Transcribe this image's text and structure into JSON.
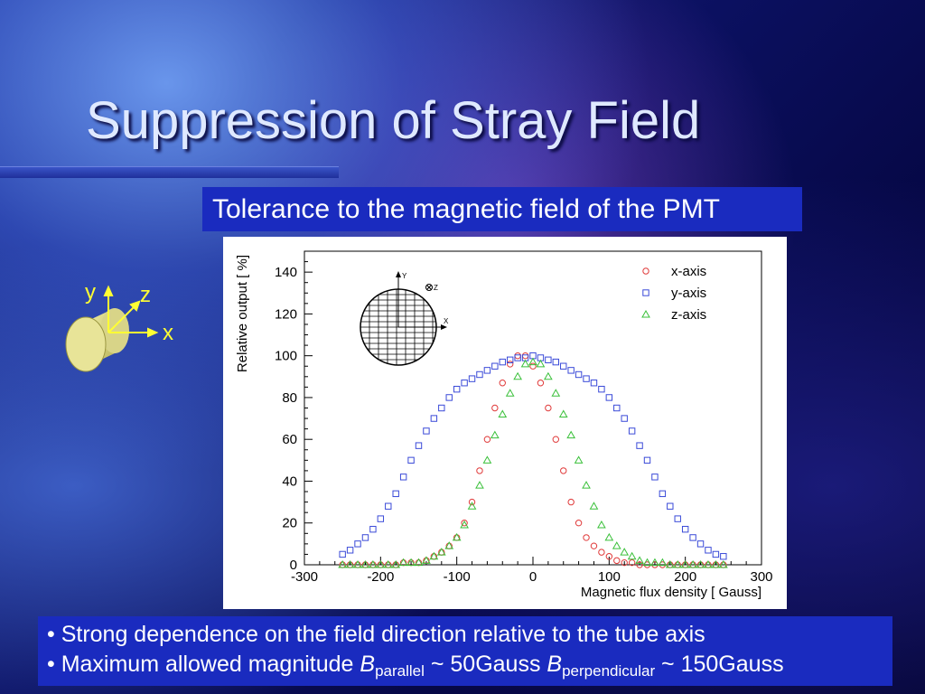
{
  "slide": {
    "title": "Suppression of Stray Field",
    "subtitle": "Tolerance to the magnetic field of the PMT",
    "axis_labels": {
      "y": "y",
      "z": "z",
      "x": "x"
    },
    "bullets": {
      "b1": "• Strong dependence on the field direction relative to the tube axis",
      "b2_prefix": "• Maximum allowed magnitude ",
      "b2_B1": "B",
      "b2_sub1": "parallel",
      "b2_mid": " ~ 50Gauss ",
      "b2_B2": "B",
      "b2_sub2": "perpendicular",
      "b2_suffix": " ~ 150Gauss"
    }
  },
  "chart_data": {
    "type": "scatter",
    "xlabel": "Magnetic flux density [ Gauss]",
    "ylabel": "Relative output [ %]",
    "xlim": [
      -300,
      300
    ],
    "ylim": [
      0,
      150
    ],
    "xticks": [
      -300,
      -200,
      -100,
      0,
      100,
      200,
      300
    ],
    "yticks": [
      0,
      20,
      40,
      60,
      80,
      100,
      120,
      140
    ],
    "legend_position": "top-right",
    "inset_labels": {
      "y": "Y",
      "z": "Z",
      "x": "X"
    },
    "series": [
      {
        "name": "x-axis",
        "marker": "circle",
        "color": "#e03a3a",
        "x": [
          -250,
          -240,
          -230,
          -220,
          -210,
          -200,
          -190,
          -180,
          -170,
          -160,
          -150,
          -140,
          -130,
          -120,
          -110,
          -100,
          -90,
          -80,
          -70,
          -60,
          -50,
          -40,
          -30,
          -20,
          -10,
          0,
          10,
          20,
          30,
          40,
          50,
          60,
          70,
          80,
          90,
          100,
          110,
          120,
          130,
          140,
          150,
          160,
          170,
          180,
          190,
          200,
          210,
          220,
          230,
          240,
          250
        ],
        "y": [
          0,
          0,
          0,
          0,
          0,
          0,
          0,
          0,
          1,
          1,
          1,
          2,
          4,
          6,
          9,
          13,
          20,
          30,
          45,
          60,
          75,
          87,
          96,
          100,
          100,
          95,
          87,
          75,
          60,
          45,
          30,
          20,
          13,
          9,
          6,
          4,
          2,
          1,
          1,
          0,
          0,
          0,
          0,
          0,
          0,
          0,
          0,
          0,
          0,
          0,
          0
        ]
      },
      {
        "name": "y-axis",
        "marker": "square",
        "color": "#3a4ad8",
        "x": [
          -250,
          -240,
          -230,
          -220,
          -210,
          -200,
          -190,
          -180,
          -170,
          -160,
          -150,
          -140,
          -130,
          -120,
          -110,
          -100,
          -90,
          -80,
          -70,
          -60,
          -50,
          -40,
          -30,
          -20,
          -10,
          0,
          10,
          20,
          30,
          40,
          50,
          60,
          70,
          80,
          90,
          100,
          110,
          120,
          130,
          140,
          150,
          160,
          170,
          180,
          190,
          200,
          210,
          220,
          230,
          240,
          250
        ],
        "y": [
          5,
          7,
          10,
          13,
          17,
          22,
          28,
          34,
          42,
          50,
          57,
          64,
          70,
          75,
          80,
          84,
          87,
          89,
          91,
          93,
          95,
          97,
          98,
          99,
          99,
          100,
          99,
          98,
          97,
          95,
          93,
          91,
          89,
          87,
          84,
          80,
          75,
          70,
          64,
          57,
          50,
          42,
          34,
          28,
          22,
          17,
          13,
          10,
          7,
          5,
          4
        ]
      },
      {
        "name": "z-axis",
        "marker": "triangle",
        "color": "#3ac03a",
        "x": [
          -250,
          -240,
          -230,
          -220,
          -210,
          -200,
          -190,
          -180,
          -170,
          -160,
          -150,
          -140,
          -130,
          -120,
          -110,
          -100,
          -90,
          -80,
          -70,
          -60,
          -50,
          -40,
          -30,
          -20,
          -10,
          0,
          10,
          20,
          30,
          40,
          50,
          60,
          70,
          80,
          90,
          100,
          110,
          120,
          130,
          140,
          150,
          160,
          170,
          180,
          190,
          200,
          210,
          220,
          230,
          240,
          250
        ],
        "y": [
          0,
          0,
          0,
          0,
          0,
          0,
          0,
          0,
          1,
          1,
          1,
          2,
          4,
          6,
          9,
          13,
          19,
          28,
          38,
          50,
          62,
          72,
          82,
          90,
          96,
          97,
          96,
          90,
          82,
          72,
          62,
          50,
          38,
          28,
          19,
          13,
          9,
          6,
          4,
          2,
          1,
          1,
          1,
          0,
          0,
          0,
          0,
          0,
          0,
          0,
          0
        ]
      }
    ]
  }
}
